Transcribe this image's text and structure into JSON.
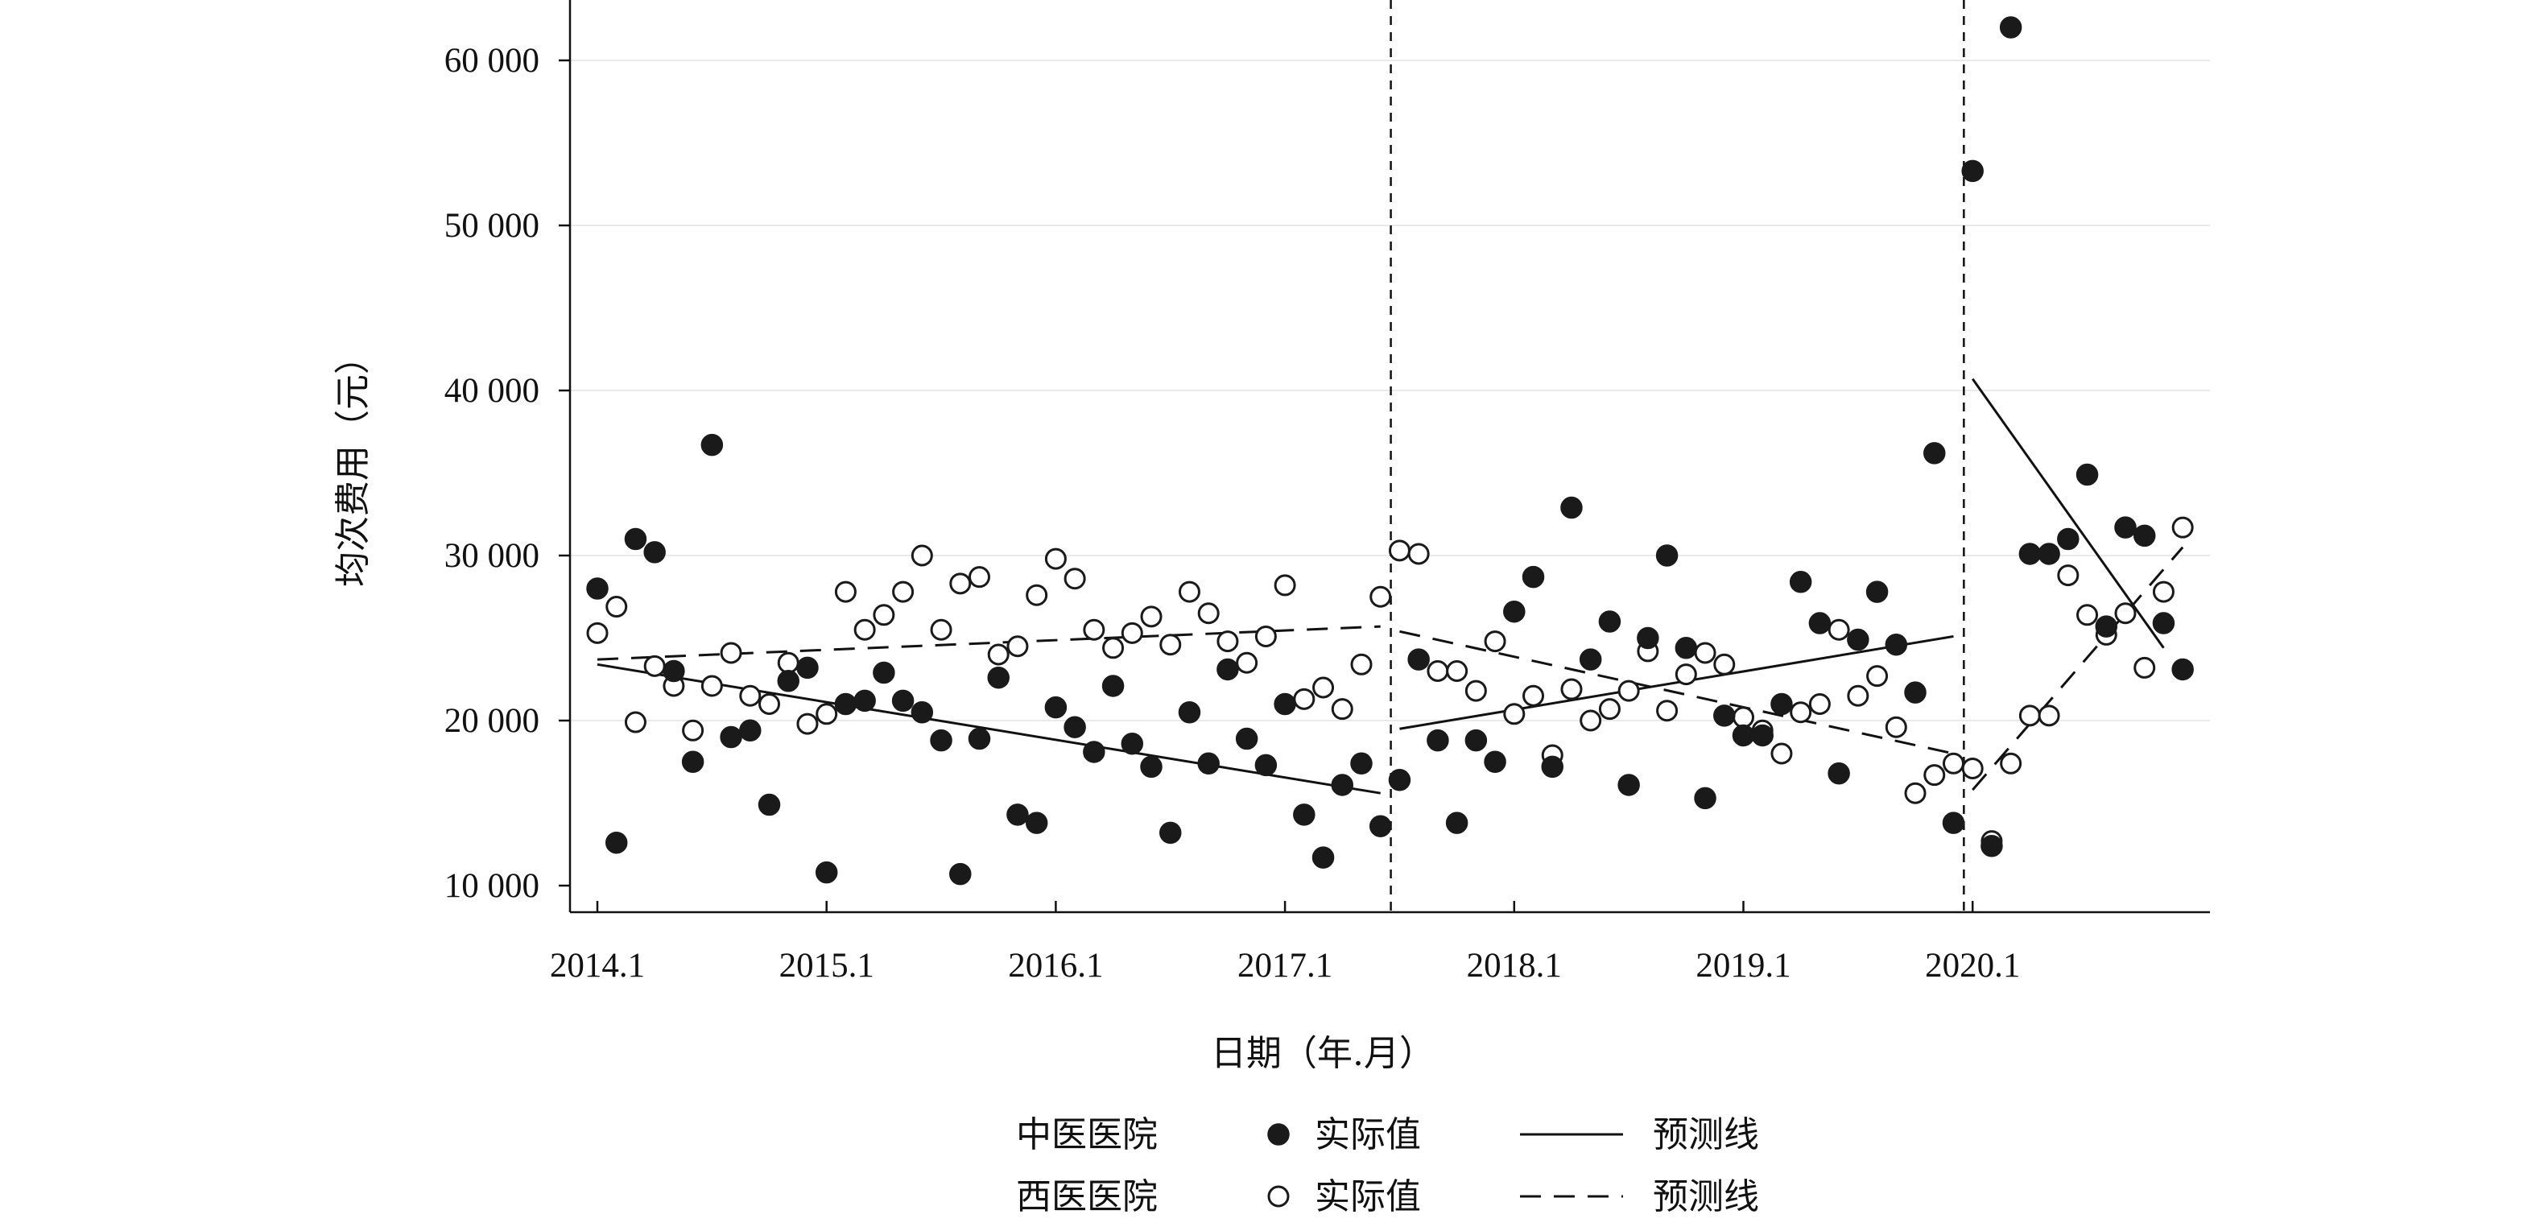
{
  "chart_data": {
    "type": "scatter",
    "xlabel": "日期（年.月）",
    "ylabel": "均次费用（元）",
    "x_ticks": [
      "2014.1",
      "2015.1",
      "2016.1",
      "2017.1",
      "2018.1",
      "2019.1",
      "2020.1"
    ],
    "y_ticks": [
      "10 000",
      "20 000",
      "30 000",
      "40 000",
      "50 000",
      "60 000"
    ],
    "y_tick_values": [
      10000,
      20000,
      30000,
      40000,
      50000,
      60000
    ],
    "ylim": [
      8500,
      64000
    ],
    "xlim": [
      "2013.11",
      "2020.12"
    ],
    "gridlines": "horizontal, light gray",
    "interventions": [
      "2017.7",
      "2020.1"
    ],
    "legend": {
      "position": "bottom",
      "rows": [
        {
          "group": "中医医院",
          "point_label": "实际值",
          "line_label": "预测线"
        },
        {
          "group": "西医医院",
          "point_label": "实际值",
          "line_label": "预测线"
        }
      ]
    },
    "series": [
      {
        "name": "中医医院",
        "marker": "filled-circle",
        "line_style": "solid",
        "points": [
          [
            "2014.1",
            28000
          ],
          [
            "2014.2",
            12600
          ],
          [
            "2014.3",
            31000
          ],
          [
            "2014.4",
            30200
          ],
          [
            "2014.5",
            23000
          ],
          [
            "2014.6",
            17500
          ],
          [
            "2014.7",
            36700
          ],
          [
            "2014.8",
            19000
          ],
          [
            "2014.9",
            19400
          ],
          [
            "2014.10",
            14900
          ],
          [
            "2014.11",
            22400
          ],
          [
            "2014.12",
            23200
          ],
          [
            "2015.1",
            10800
          ],
          [
            "2015.2",
            21000
          ],
          [
            "2015.3",
            21200
          ],
          [
            "2015.4",
            22900
          ],
          [
            "2015.5",
            21200
          ],
          [
            "2015.6",
            20500
          ],
          [
            "2015.7",
            18800
          ],
          [
            "2015.8",
            10700
          ],
          [
            "2015.9",
            18900
          ],
          [
            "2015.10",
            22600
          ],
          [
            "2015.11",
            14300
          ],
          [
            "2015.12",
            13800
          ],
          [
            "2016.1",
            20800
          ],
          [
            "2016.2",
            19600
          ],
          [
            "2016.3",
            18100
          ],
          [
            "2016.4",
            22100
          ],
          [
            "2016.5",
            18600
          ],
          [
            "2016.6",
            17200
          ],
          [
            "2016.7",
            13200
          ],
          [
            "2016.8",
            20500
          ],
          [
            "2016.9",
            17400
          ],
          [
            "2016.10",
            23100
          ],
          [
            "2016.11",
            18900
          ],
          [
            "2016.12",
            17300
          ],
          [
            "2017.1",
            21000
          ],
          [
            "2017.2",
            14300
          ],
          [
            "2017.3",
            11700
          ],
          [
            "2017.4",
            16100
          ],
          [
            "2017.5",
            17400
          ],
          [
            "2017.6",
            13600
          ],
          [
            "2017.7",
            16400
          ],
          [
            "2017.8",
            23700
          ],
          [
            "2017.9",
            18800
          ],
          [
            "2017.10",
            13800
          ],
          [
            "2017.11",
            18800
          ],
          [
            "2017.12",
            17500
          ],
          [
            "2018.1",
            26600
          ],
          [
            "2018.2",
            28700
          ],
          [
            "2018.3",
            17200
          ],
          [
            "2018.4",
            32900
          ],
          [
            "2018.5",
            23700
          ],
          [
            "2018.6",
            26000
          ],
          [
            "2018.7",
            16100
          ],
          [
            "2018.8",
            25000
          ],
          [
            "2018.9",
            30000
          ],
          [
            "2018.10",
            24400
          ],
          [
            "2018.11",
            15300
          ],
          [
            "2018.12",
            20300
          ],
          [
            "2019.1",
            19100
          ],
          [
            "2019.2",
            19100
          ],
          [
            "2019.3",
            21000
          ],
          [
            "2019.4",
            28400
          ],
          [
            "2019.5",
            25900
          ],
          [
            "2019.6",
            16800
          ],
          [
            "2019.7",
            24900
          ],
          [
            "2019.8",
            27800
          ],
          [
            "2019.9",
            24600
          ],
          [
            "2019.10",
            21700
          ],
          [
            "2019.11",
            36200
          ],
          [
            "2019.12",
            13800
          ],
          [
            "2020.1",
            53300
          ],
          [
            "2020.2",
            12400
          ],
          [
            "2020.3",
            62000
          ],
          [
            "2020.4",
            30100
          ],
          [
            "2020.5",
            30100
          ],
          [
            "2020.6",
            31000
          ],
          [
            "2020.7",
            34900
          ],
          [
            "2020.8",
            25700
          ],
          [
            "2020.9",
            31700
          ],
          [
            "2020.10",
            31200
          ],
          [
            "2020.11",
            25900
          ],
          [
            "2020.12",
            23100
          ]
        ],
        "trend_segments": [
          {
            "start": [
              "2014.1",
              23400
            ],
            "end": [
              "2017.6",
              15600
            ]
          },
          {
            "start": [
              "2017.7",
              19500
            ],
            "end": [
              "2019.12",
              25100
            ]
          },
          {
            "start": [
              "2020.1",
              40700
            ],
            "end": [
              "2020.11",
              24400
            ]
          }
        ]
      },
      {
        "name": "西医医院",
        "marker": "open-circle",
        "line_style": "dashed",
        "points": [
          [
            "2014.1",
            25300
          ],
          [
            "2014.2",
            26900
          ],
          [
            "2014.3",
            19900
          ],
          [
            "2014.4",
            23300
          ],
          [
            "2014.5",
            22100
          ],
          [
            "2014.6",
            19400
          ],
          [
            "2014.7",
            22100
          ],
          [
            "2014.8",
            24100
          ],
          [
            "2014.9",
            21500
          ],
          [
            "2014.10",
            21000
          ],
          [
            "2014.11",
            23500
          ],
          [
            "2014.12",
            19800
          ],
          [
            "2015.1",
            20400
          ],
          [
            "2015.2",
            27800
          ],
          [
            "2015.3",
            25500
          ],
          [
            "2015.4",
            26400
          ],
          [
            "2015.5",
            27800
          ],
          [
            "2015.6",
            30000
          ],
          [
            "2015.7",
            25500
          ],
          [
            "2015.8",
            28300
          ],
          [
            "2015.9",
            28700
          ],
          [
            "2015.10",
            24000
          ],
          [
            "2015.11",
            24500
          ],
          [
            "2015.12",
            27600
          ],
          [
            "2016.1",
            29800
          ],
          [
            "2016.2",
            28600
          ],
          [
            "2016.3",
            25500
          ],
          [
            "2016.4",
            24400
          ],
          [
            "2016.5",
            25300
          ],
          [
            "2016.6",
            26300
          ],
          [
            "2016.7",
            24600
          ],
          [
            "2016.8",
            27800
          ],
          [
            "2016.9",
            26500
          ],
          [
            "2016.10",
            24800
          ],
          [
            "2016.11",
            23500
          ],
          [
            "2016.12",
            25100
          ],
          [
            "2017.1",
            28200
          ],
          [
            "2017.2",
            21300
          ],
          [
            "2017.3",
            22000
          ],
          [
            "2017.4",
            20700
          ],
          [
            "2017.5",
            23400
          ],
          [
            "2017.6",
            27500
          ],
          [
            "2017.7",
            30300
          ],
          [
            "2017.8",
            30100
          ],
          [
            "2017.9",
            23000
          ],
          [
            "2017.10",
            23000
          ],
          [
            "2017.11",
            21800
          ],
          [
            "2017.12",
            24800
          ],
          [
            "2018.1",
            20400
          ],
          [
            "2018.2",
            21500
          ],
          [
            "2018.3",
            17900
          ],
          [
            "2018.4",
            21900
          ],
          [
            "2018.5",
            20000
          ],
          [
            "2018.6",
            20700
          ],
          [
            "2018.7",
            21800
          ],
          [
            "2018.8",
            24200
          ],
          [
            "2018.9",
            20600
          ],
          [
            "2018.10",
            22800
          ],
          [
            "2018.11",
            24100
          ],
          [
            "2018.12",
            23400
          ],
          [
            "2019.1",
            20200
          ],
          [
            "2019.2",
            19400
          ],
          [
            "2019.3",
            18000
          ],
          [
            "2019.4",
            20500
          ],
          [
            "2019.5",
            21000
          ],
          [
            "2019.6",
            25500
          ],
          [
            "2019.7",
            21500
          ],
          [
            "2019.8",
            22700
          ],
          [
            "2019.9",
            19600
          ],
          [
            "2019.10",
            15600
          ],
          [
            "2019.11",
            16700
          ],
          [
            "2019.12",
            17400
          ],
          [
            "2020.1",
            17100
          ],
          [
            "2020.2",
            12700
          ],
          [
            "2020.3",
            17400
          ],
          [
            "2020.4",
            20300
          ],
          [
            "2020.5",
            20300
          ],
          [
            "2020.6",
            28800
          ],
          [
            "2020.7",
            26400
          ],
          [
            "2020.8",
            25200
          ],
          [
            "2020.9",
            26500
          ],
          [
            "2020.10",
            23200
          ],
          [
            "2020.11",
            27800
          ],
          [
            "2020.12",
            31700
          ]
        ],
        "trend_segments": [
          {
            "start": [
              "2014.1",
              23700
            ],
            "end": [
              "2017.6",
              25700
            ]
          },
          {
            "start": [
              "2017.7",
              25400
            ],
            "end": [
              "2019.12",
              18000
            ]
          },
          {
            "start": [
              "2020.1",
              15800
            ],
            "end": [
              "2020.12",
              30500
            ]
          }
        ]
      }
    ]
  }
}
